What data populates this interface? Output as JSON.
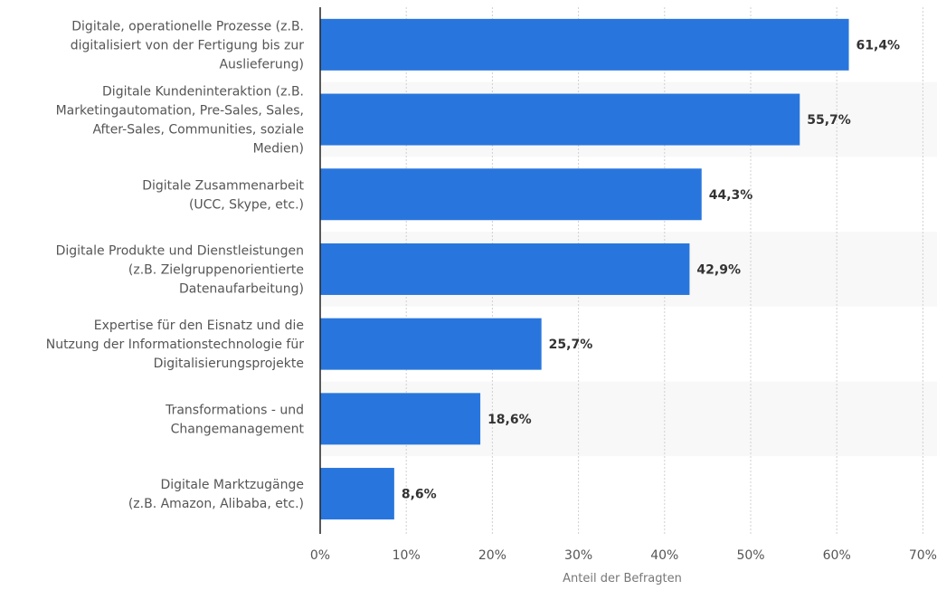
{
  "chart_data": {
    "type": "bar",
    "orientation": "horizontal",
    "categories": [
      [
        "Digitale, operationelle Prozesse (z.B.",
        "digitalisiert von der Fertigung bis zur",
        "Auslieferung)"
      ],
      [
        "Digitale Kundeninteraktion (z.B.",
        "Marketingautomation, Pre-Sales, Sales,",
        "After-Sales, Communities, soziale",
        "Medien)"
      ],
      [
        "Digitale Zusammenarbeit",
        "(UCC, Skype, etc.)"
      ],
      [
        "Digitale Produkte und Dienstleistungen",
        "(z.B. Zielgruppenorientierte",
        "Datenaufarbeitung)"
      ],
      [
        "Expertise für den Eisnatz und die",
        "Nutzung der Informationstechnologie für",
        "Digitalisierungsprojekte"
      ],
      [
        "Transformations - und",
        "Changemanagement"
      ],
      [
        "Digitale Marktzugänge",
        "(z.B. Amazon, Alibaba, etc.)"
      ]
    ],
    "values": [
      61.4,
      55.7,
      44.3,
      42.9,
      25.7,
      18.6,
      8.6
    ],
    "data_labels": [
      "61,4%",
      "55,7%",
      "44,3%",
      "42,9%",
      "25,7%",
      "18,6%",
      "8,6%"
    ],
    "xlabel": "Anteil der Befragten",
    "xlim": [
      0,
      70
    ],
    "xticks": [
      "0%",
      "10%",
      "20%",
      "30%",
      "40%",
      "50%",
      "60%",
      "70%"
    ],
    "grid": true,
    "colors": {
      "bar": "#2876dd",
      "band": "#f8f8f8",
      "grid": "#d0d0d0",
      "text": "#555555",
      "label": "#333333"
    }
  }
}
